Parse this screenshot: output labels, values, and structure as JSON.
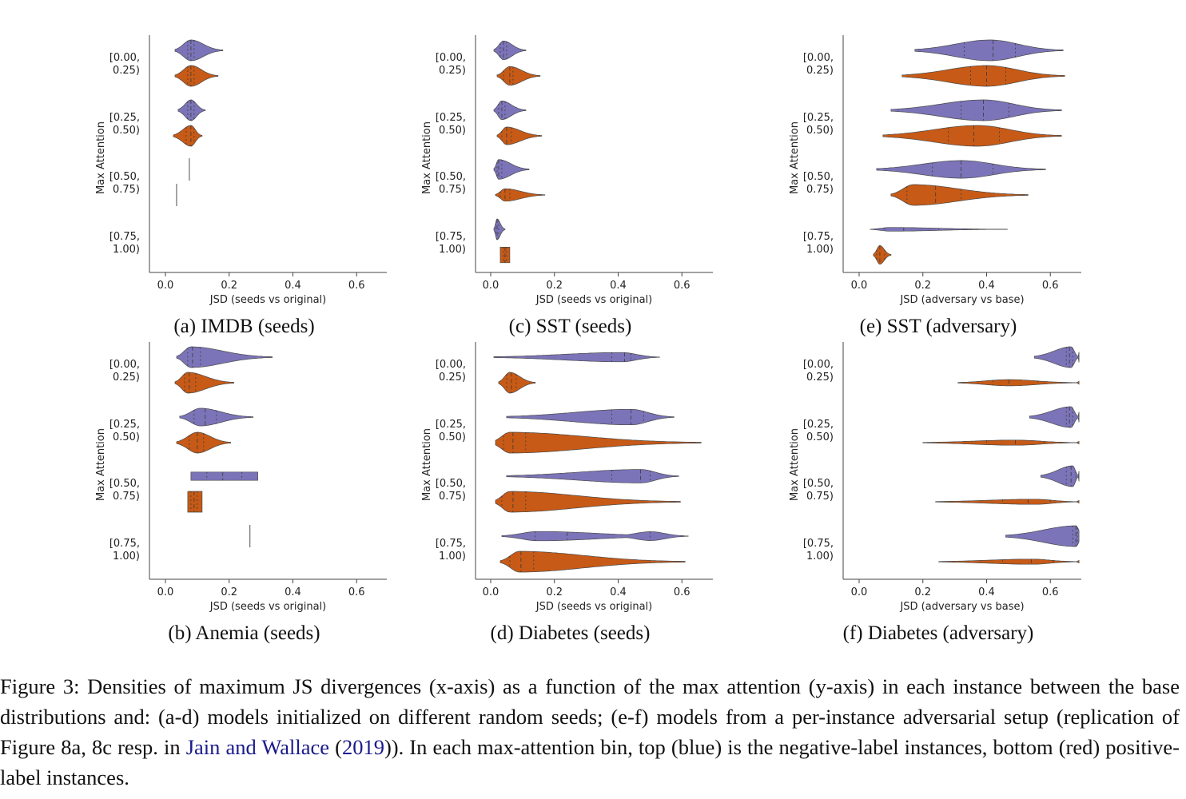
{
  "colors": {
    "negative": "#7b74b8",
    "positive": "#c75a16",
    "axis": "#444444"
  },
  "chart_data": [
    {
      "id": "a",
      "type": "violin",
      "caption": "(a) IMDB (seeds)",
      "xlabel": "JSD (seeds vs original)",
      "ylabel": "Max Attention",
      "xlim": [
        -0.05,
        0.7
      ],
      "xticks": [
        "0.0",
        "0.2",
        "0.4",
        "0.6"
      ],
      "bins": [
        {
          "label": [
            "[0.00,",
            "0.25)"
          ],
          "negative": {
            "min": 0.03,
            "max": 0.18,
            "q1": 0.07,
            "median": 0.08,
            "q3": 0.09,
            "mode": 0.08,
            "maxwidth": 1.0
          },
          "positive": {
            "min": 0.03,
            "max": 0.165,
            "q1": 0.07,
            "median": 0.08,
            "q3": 0.09,
            "mode": 0.08,
            "maxwidth": 1.0
          }
        },
        {
          "label": [
            "[0.25,",
            "0.50)"
          ],
          "negative": {
            "min": 0.04,
            "max": 0.125,
            "q1": 0.07,
            "median": 0.08,
            "q3": 0.09,
            "mode": 0.08,
            "maxwidth": 1.0
          },
          "positive": {
            "min": 0.025,
            "max": 0.115,
            "q1": 0.065,
            "median": 0.08,
            "q3": 0.09,
            "mode": 0.08,
            "maxwidth": 1.0
          }
        },
        {
          "label": [
            "[0.50,",
            "0.75)"
          ],
          "negative": {
            "min": 0.075,
            "max": 0.075,
            "line": true
          },
          "positive": {
            "min": 0.035,
            "max": 0.035,
            "line": true
          }
        },
        {
          "label": [
            "[0.75,",
            "1.00)"
          ],
          "negative": null,
          "positive": null
        }
      ]
    },
    {
      "id": "c",
      "type": "violin",
      "caption": "(c) SST (seeds)",
      "xlabel": "JSD (seeds vs original)",
      "ylabel": "Max Attention",
      "xlim": [
        -0.05,
        0.7
      ],
      "xticks": [
        "0.0",
        "0.2",
        "0.4",
        "0.6"
      ],
      "bins": [
        {
          "label": [
            "[0.00,",
            "0.25)"
          ],
          "negative": {
            "min": 0.01,
            "max": 0.11,
            "q1": 0.03,
            "median": 0.04,
            "q3": 0.05,
            "mode": 0.04,
            "maxwidth": 0.9
          },
          "positive": {
            "min": 0.02,
            "max": 0.155,
            "q1": 0.04,
            "median": 0.06,
            "q3": 0.07,
            "mode": 0.06,
            "maxwidth": 0.9
          }
        },
        {
          "label": [
            "[0.25,",
            "0.50)"
          ],
          "negative": {
            "min": 0.01,
            "max": 0.11,
            "q1": 0.025,
            "median": 0.035,
            "q3": 0.045,
            "mode": 0.035,
            "maxwidth": 0.9
          },
          "positive": {
            "min": 0.02,
            "max": 0.16,
            "q1": 0.035,
            "median": 0.05,
            "q3": 0.065,
            "mode": 0.05,
            "maxwidth": 0.85
          }
        },
        {
          "label": [
            "[0.50,",
            "0.75)"
          ],
          "negative": {
            "min": 0.01,
            "max": 0.12,
            "q1": 0.02,
            "median": 0.025,
            "q3": 0.035,
            "mode": 0.025,
            "maxwidth": 0.95
          },
          "positive": {
            "min": 0.015,
            "max": 0.17,
            "q1": 0.03,
            "median": 0.045,
            "q3": 0.06,
            "mode": 0.045,
            "maxwidth": 0.6
          }
        },
        {
          "label": [
            "[0.75,",
            "1.00)"
          ],
          "negative": {
            "min": 0.01,
            "max": 0.045,
            "q1": 0.015,
            "median": 0.02,
            "q3": 0.025,
            "mode": 0.02,
            "maxwidth": 1.0
          },
          "positive": {
            "min": 0.03,
            "max": 0.06,
            "q1": 0.04,
            "median": 0.045,
            "q3": 0.05,
            "mode": 0.045,
            "maxwidth": 0.75,
            "flat": true
          }
        }
      ]
    },
    {
      "id": "e",
      "type": "violin",
      "caption": "(e) SST (adversary)",
      "xlabel": "JSD (adversary vs base)",
      "ylabel": "Max Attention",
      "xlim": [
        -0.05,
        0.7
      ],
      "xticks": [
        "0.0",
        "0.2",
        "0.4",
        "0.6"
      ],
      "bins": [
        {
          "label": [
            "[0.00,",
            "0.25)"
          ],
          "negative": {
            "min": 0.175,
            "max": 0.64,
            "q1": 0.33,
            "median": 0.42,
            "q3": 0.49,
            "mode": 0.41,
            "maxwidth": 1.0
          },
          "positive": {
            "min": 0.135,
            "max": 0.645,
            "q1": 0.35,
            "median": 0.4,
            "q3": 0.46,
            "mode": 0.4,
            "maxwidth": 1.0
          }
        },
        {
          "label": [
            "[0.25,",
            "0.50)"
          ],
          "negative": {
            "min": 0.1,
            "max": 0.635,
            "q1": 0.32,
            "median": 0.39,
            "q3": 0.47,
            "mode": 0.39,
            "maxwidth": 1.0
          },
          "positive": {
            "min": 0.075,
            "max": 0.635,
            "q1": 0.28,
            "median": 0.36,
            "q3": 0.44,
            "mode": 0.37,
            "maxwidth": 1.0
          }
        },
        {
          "label": [
            "[0.50,",
            "0.75)"
          ],
          "negative": {
            "min": 0.055,
            "max": 0.585,
            "q1": 0.23,
            "median": 0.32,
            "q3": 0.42,
            "mode": 0.32,
            "maxwidth": 0.85
          },
          "positive": {
            "min": 0.1,
            "max": 0.53,
            "q1": 0.15,
            "median": 0.24,
            "q3": 0.32,
            "mode": 0.17,
            "maxwidth": 1.0
          }
        },
        {
          "label": [
            "[0.75,",
            "1.00)"
          ],
          "negative": {
            "min": 0.035,
            "max": 0.465,
            "q1": 0.08,
            "median": 0.14,
            "q3": 0.25,
            "mode": 0.1,
            "maxwidth": 0.18
          },
          "positive": {
            "min": 0.045,
            "max": 0.1,
            "q1": 0.055,
            "median": 0.065,
            "q3": 0.08,
            "mode": 0.065,
            "maxwidth": 0.9
          }
        }
      ]
    },
    {
      "id": "b",
      "type": "violin",
      "caption": "(b) Anemia (seeds)",
      "xlabel": "JSD (seeds vs original)",
      "ylabel": "Max Attention",
      "xlim": [
        -0.05,
        0.7
      ],
      "xticks": [
        "0.0",
        "0.2",
        "0.4",
        "0.6"
      ],
      "bins": [
        {
          "label": [
            "[0.00,",
            "0.25)"
          ],
          "negative": {
            "min": 0.035,
            "max": 0.335,
            "q1": 0.07,
            "median": 0.085,
            "q3": 0.11,
            "mode": 0.08,
            "maxwidth": 1.0
          },
          "positive": {
            "min": 0.03,
            "max": 0.215,
            "q1": 0.06,
            "median": 0.075,
            "q3": 0.095,
            "mode": 0.07,
            "maxwidth": 1.0
          }
        },
        {
          "label": [
            "[0.25,",
            "0.50)"
          ],
          "negative": {
            "min": 0.045,
            "max": 0.275,
            "q1": 0.09,
            "median": 0.125,
            "q3": 0.16,
            "mode": 0.11,
            "maxwidth": 0.85
          },
          "positive": {
            "min": 0.035,
            "max": 0.205,
            "q1": 0.075,
            "median": 0.1,
            "q3": 0.12,
            "mode": 0.1,
            "maxwidth": 1.0
          }
        },
        {
          "label": [
            "[0.50,",
            "0.75)"
          ],
          "negative": {
            "min": 0.08,
            "max": 0.29,
            "q1": 0.13,
            "median": 0.18,
            "q3": 0.24,
            "mode": 0.18,
            "maxwidth": 0.4,
            "flat": true
          },
          "positive": {
            "min": 0.07,
            "max": 0.115,
            "q1": 0.08,
            "median": 0.09,
            "q3": 0.1,
            "mode": 0.09,
            "maxwidth": 1.0,
            "flat": true
          }
        },
        {
          "label": [
            "[0.75,",
            "1.00)"
          ],
          "negative": {
            "min": 0.265,
            "max": 0.265,
            "line": true
          },
          "positive": null
        }
      ]
    },
    {
      "id": "d",
      "type": "violin",
      "caption": "(d) Diabetes (seeds)",
      "xlabel": "JSD (seeds vs original)",
      "ylabel": "Max Attention",
      "xlim": [
        -0.05,
        0.7
      ],
      "xticks": [
        "0.0",
        "0.2",
        "0.4",
        "0.6"
      ],
      "bins": [
        {
          "label": [
            "[0.00,",
            "0.25)"
          ],
          "negative": {
            "min": 0.01,
            "max": 0.53,
            "q1": 0.38,
            "median": 0.42,
            "q3": 0.44,
            "mode": 0.41,
            "maxwidth": 0.45
          },
          "positive": {
            "min": 0.025,
            "max": 0.14,
            "q1": 0.05,
            "median": 0.065,
            "q3": 0.08,
            "mode": 0.06,
            "maxwidth": 1.0
          }
        },
        {
          "label": [
            "[0.25,",
            "0.50)"
          ],
          "negative": {
            "min": 0.05,
            "max": 0.575,
            "q1": 0.38,
            "median": 0.44,
            "q3": 0.48,
            "mode": 0.44,
            "maxwidth": 0.75
          },
          "positive": {
            "min": 0.015,
            "max": 0.66,
            "q1": 0.04,
            "median": 0.07,
            "q3": 0.11,
            "mode": 0.06,
            "maxwidth": 1.0
          }
        },
        {
          "label": [
            "[0.50,",
            "0.75)"
          ],
          "negative": {
            "min": 0.05,
            "max": 0.59,
            "q1": 0.38,
            "median": 0.47,
            "q3": 0.5,
            "mode": 0.47,
            "maxwidth": 0.65
          },
          "positive": {
            "min": 0.015,
            "max": 0.595,
            "q1": 0.035,
            "median": 0.07,
            "q3": 0.11,
            "mode": 0.06,
            "maxwidth": 1.0
          }
        },
        {
          "label": [
            "[0.75,",
            "1.00)"
          ],
          "negative": {
            "min": 0.035,
            "max": 0.62,
            "q1": 0.14,
            "median": 0.24,
            "q3": 0.5,
            "mode": 0.15,
            "maxwidth": 0.45,
            "bimodal": 0.5
          },
          "positive": {
            "min": 0.03,
            "max": 0.61,
            "q1": 0.06,
            "median": 0.095,
            "q3": 0.135,
            "mode": 0.09,
            "maxwidth": 1.0
          }
        }
      ]
    },
    {
      "id": "f",
      "type": "violin",
      "caption": "(f) Diabetes (adversary)",
      "xlabel": "JSD (adversary vs base)",
      "ylabel": "Max Attention",
      "xlim": [
        -0.05,
        0.7
      ],
      "xticks": [
        "0.0",
        "0.2",
        "0.4",
        "0.6"
      ],
      "bins": [
        {
          "label": [
            "[0.00,",
            "0.25)"
          ],
          "negative": {
            "min": 0.55,
            "max": 0.69,
            "q1": 0.65,
            "median": 0.66,
            "q3": 0.67,
            "mode": 0.665,
            "maxwidth": 1.0,
            "clip": true
          },
          "positive": {
            "min": 0.31,
            "max": 0.69,
            "q1": 0.42,
            "median": 0.47,
            "q3": 0.56,
            "mode": 0.47,
            "maxwidth": 0.3,
            "clip": true
          }
        },
        {
          "label": [
            "[0.25,",
            "0.50)"
          ],
          "negative": {
            "min": 0.535,
            "max": 0.69,
            "q1": 0.65,
            "median": 0.66,
            "q3": 0.67,
            "mode": 0.665,
            "maxwidth": 1.0,
            "clip": true
          },
          "positive": {
            "min": 0.2,
            "max": 0.69,
            "q1": 0.4,
            "median": 0.49,
            "q3": 0.58,
            "mode": 0.49,
            "maxwidth": 0.25,
            "clip": true
          }
        },
        {
          "label": [
            "[0.50,",
            "0.75)"
          ],
          "negative": {
            "min": 0.57,
            "max": 0.69,
            "q1": 0.65,
            "median": 0.665,
            "q3": 0.68,
            "mode": 0.67,
            "maxwidth": 1.0,
            "clip": true
          },
          "positive": {
            "min": 0.24,
            "max": 0.69,
            "q1": 0.45,
            "median": 0.53,
            "q3": 0.6,
            "mode": 0.55,
            "maxwidth": 0.25,
            "clip": true
          }
        },
        {
          "label": [
            "[0.75,",
            "1.00)"
          ],
          "negative": {
            "min": 0.46,
            "max": 0.69,
            "q1": 0.67,
            "median": 0.68,
            "q3": 0.685,
            "mode": 0.68,
            "maxwidth": 1.0,
            "clip": true
          },
          "positive": {
            "min": 0.25,
            "max": 0.69,
            "q1": 0.45,
            "median": 0.54,
            "q3": 0.61,
            "mode": 0.54,
            "maxwidth": 0.25,
            "clip": true
          }
        }
      ]
    }
  ],
  "caption": {
    "part1": "Figure 3: Densities of maximum JS divergences (x-axis) as a function of the max attention (y-axis) in each instance between the base distributions and: (a-d) models initialized on different random seeds; (e-f) models from a per-instance adversarial setup (replication of Figure 8a, 8c resp. in ",
    "link1": "Jain and Wallace",
    "part2": " (",
    "link2": "2019",
    "part3": ")). In each max-attention bin, top (blue) is the negative-label instances, bottom (red) positive-label instances."
  }
}
